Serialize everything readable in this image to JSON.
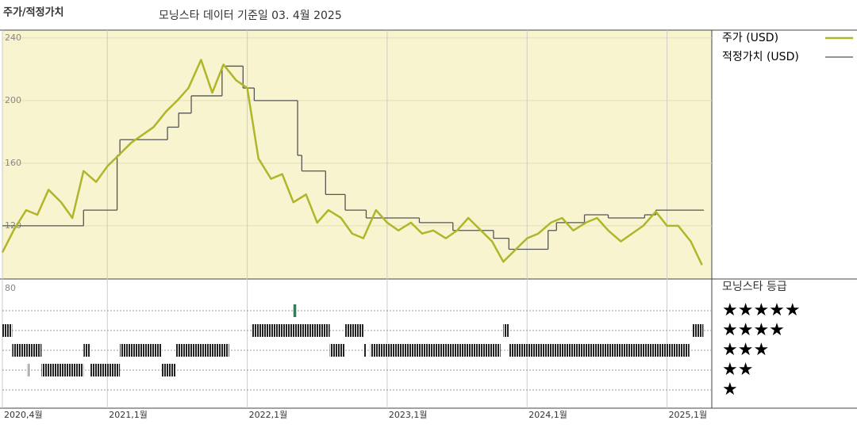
{
  "chart_data": {
    "type": "line",
    "title": "주가/적정가치",
    "subtitle": "모닝스타 데이터 기준일 03. 4월 2025",
    "xlim": [
      2020.25,
      2025.32
    ],
    "xticks": [
      {
        "value": 2020.25,
        "label": "2020,4월"
      },
      {
        "value": 2021.0,
        "label": "2021,1월"
      },
      {
        "value": 2022.0,
        "label": "2022,1월"
      },
      {
        "value": 2023.0,
        "label": "2023,1월"
      },
      {
        "value": 2024.0,
        "label": "2024,1월"
      },
      {
        "value": 2025.0,
        "label": "2025,1월"
      }
    ],
    "ylim": [
      86,
      245
    ],
    "yticks": [
      120,
      160,
      200,
      240
    ],
    "series": [
      {
        "name": "주가 (USD)",
        "color": "#b1b52a",
        "style": "line",
        "x": [
          2020.25,
          2020.33,
          2020.42,
          2020.5,
          2020.58,
          2020.67,
          2020.75,
          2020.83,
          2020.92,
          2021.0,
          2021.08,
          2021.17,
          2021.25,
          2021.33,
          2021.42,
          2021.5,
          2021.58,
          2021.67,
          2021.75,
          2021.83,
          2021.92,
          2022.0,
          2022.08,
          2022.17,
          2022.25,
          2022.33,
          2022.42,
          2022.5,
          2022.58,
          2022.67,
          2022.75,
          2022.83,
          2022.92,
          2023.0,
          2023.08,
          2023.17,
          2023.25,
          2023.33,
          2023.42,
          2023.5,
          2023.58,
          2023.67,
          2023.75,
          2023.83,
          2023.92,
          2024.0,
          2024.08,
          2024.17,
          2024.25,
          2024.33,
          2024.42,
          2024.5,
          2024.58,
          2024.67,
          2024.75,
          2024.83,
          2024.92,
          2025.0,
          2025.08,
          2025.17,
          2025.25
        ],
        "values": [
          103,
          117,
          130,
          127,
          143,
          135,
          125,
          155,
          148,
          158,
          165,
          173,
          178,
          183,
          193,
          200,
          208,
          226,
          205,
          223,
          213,
          208,
          163,
          150,
          153,
          135,
          140,
          122,
          130,
          125,
          115,
          112,
          130,
          122,
          117,
          122,
          115,
          117,
          112,
          117,
          125,
          117,
          110,
          97,
          105,
          112,
          115,
          122,
          125,
          117,
          122,
          125,
          117,
          110,
          115,
          120,
          129,
          120,
          120,
          110,
          95
        ]
      },
      {
        "name": "적정가치 (USD)",
        "color": "#555555",
        "style": "step",
        "x": [
          2020.25,
          2020.83,
          2021.07,
          2021.09,
          2021.43,
          2021.51,
          2021.6,
          2021.82,
          2021.97,
          2022.05,
          2022.36,
          2022.39,
          2022.56,
          2022.7,
          2022.85,
          2023.23,
          2023.47,
          2023.76,
          2023.87,
          2024.15,
          2024.21,
          2024.41,
          2024.58,
          2024.84,
          2024.92,
          2025.26
        ],
        "values": [
          120,
          130,
          165,
          175,
          183,
          192,
          203,
          222,
          208,
          200,
          165,
          155,
          140,
          130,
          125,
          122,
          117,
          112,
          105,
          117,
          122,
          127,
          125,
          127,
          130,
          130
        ]
      }
    ],
    "rating_title": "모닝스타 등급",
    "rating_axis_label": "80",
    "rating_labels": [
      "★",
      "★★",
      "★★★",
      "★★★★",
      "★★★★★"
    ],
    "ratings": [
      {
        "start": 2020.25,
        "end": 2020.32,
        "stars": 4
      },
      {
        "start": 2020.32,
        "end": 2020.53,
        "stars": 3
      },
      {
        "start": 2020.43,
        "end": 2020.44,
        "stars": 2
      },
      {
        "start": 2020.53,
        "end": 2020.83,
        "stars": 2
      },
      {
        "start": 2020.83,
        "end": 2020.88,
        "stars": 3
      },
      {
        "start": 2020.88,
        "end": 2021.09,
        "stars": 2
      },
      {
        "start": 2021.09,
        "end": 2021.39,
        "stars": 3
      },
      {
        "start": 2021.39,
        "end": 2021.49,
        "stars": 2
      },
      {
        "start": 2021.49,
        "end": 2021.87,
        "stars": 3
      },
      {
        "start": 2022.03,
        "end": 2022.59,
        "stars": 4
      },
      {
        "start": 2022.33,
        "end": 2022.35,
        "stars": 5
      },
      {
        "start": 2022.59,
        "end": 2022.7,
        "stars": 3
      },
      {
        "start": 2022.7,
        "end": 2022.83,
        "stars": 4
      },
      {
        "start": 2022.83,
        "end": 2022.85,
        "stars": 3
      },
      {
        "start": 2022.88,
        "end": 2023.81,
        "stars": 3
      },
      {
        "start": 2023.83,
        "end": 2023.87,
        "stars": 4
      },
      {
        "start": 2023.87,
        "end": 2025.16,
        "stars": 3
      },
      {
        "start": 2025.18,
        "end": 2025.26,
        "stars": 4
      }
    ]
  }
}
